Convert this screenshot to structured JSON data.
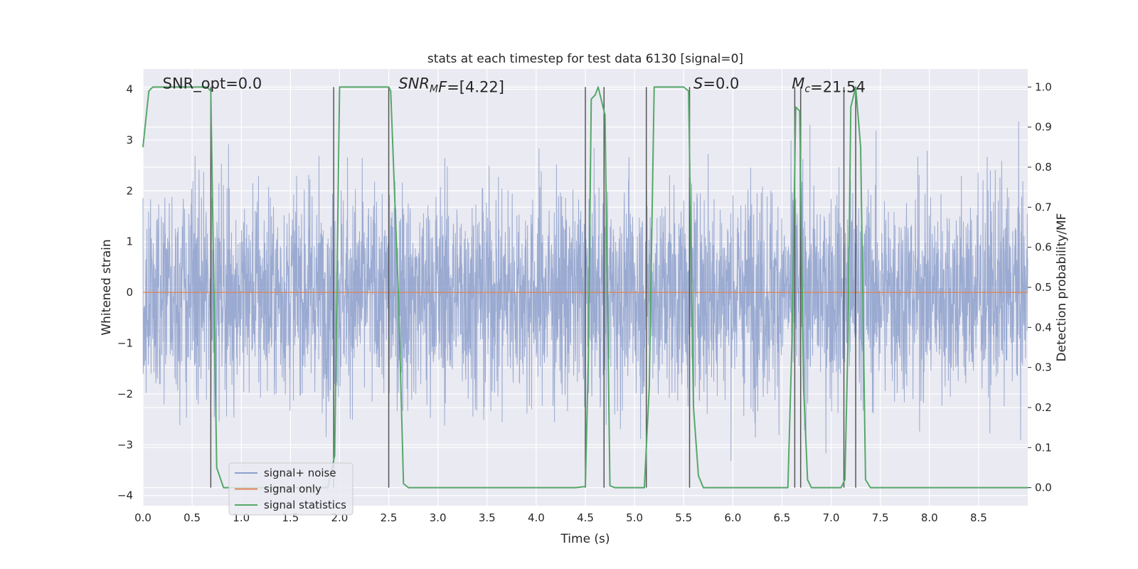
{
  "chart_data": {
    "type": "line",
    "title": "stats at each timestep for test data 6130 [signal=0]",
    "xlabel": "Time (s)",
    "ylabel": "Whitened strain",
    "y2label": "Detection probability/MF",
    "xlim": [
      0.0,
      9.0
    ],
    "ylim": [
      -4.2,
      4.4
    ],
    "y2lim": [
      -0.045,
      1.045
    ],
    "x_ticks": [
      "0.0",
      "0.5",
      "1.0",
      "1.5",
      "2.0",
      "2.5",
      "3.0",
      "3.5",
      "4.0",
      "4.5",
      "5.0",
      "5.5",
      "6.0",
      "6.5",
      "7.0",
      "7.5",
      "8.0",
      "8.5"
    ],
    "y_ticks": [
      "4",
      "3",
      "2",
      "1",
      "0",
      "−1",
      "−2",
      "−3",
      "−4"
    ],
    "y2_ticks": [
      "1.0",
      "0.9",
      "0.8",
      "0.7",
      "0.6",
      "0.5",
      "0.4",
      "0.3",
      "0.2",
      "0.1",
      "0.0"
    ],
    "grid": true,
    "legend_placement": "lower-left",
    "annotations": [
      {
        "prefix": "SNR_opt",
        "italic": "",
        "sub": "",
        "suffix": "=0.0",
        "x": 0.2
      },
      {
        "prefix": "",
        "italic": "SNR",
        "sub": "M",
        "suffix": "=[4.22]",
        "italic2": "F",
        "x": 2.6
      },
      {
        "prefix": "",
        "italic": "S",
        "sub": "",
        "suffix": "=0.0",
        "x": 5.6
      },
      {
        "prefix": "",
        "italic": "M",
        "sub": "c",
        "suffix": "=21.54",
        "x": 6.6
      }
    ],
    "series": [
      {
        "name": "signal+ noise",
        "color": "#8c9fcb",
        "description": "whitened noise, approx. |y| < 3.9, mostly within ±2.5",
        "noise_range": [
          -3.8,
          3.9
        ]
      },
      {
        "name": "signal only",
        "color": "#dd8452",
        "x": [
          0.0,
          9.0
        ],
        "y": [
          0.0,
          0.0
        ]
      },
      {
        "name": "signal statistics",
        "color": "#55a868",
        "axis": "right",
        "x": [
          0.0,
          0.06,
          0.1,
          0.2,
          0.3,
          0.4,
          0.5,
          0.6,
          0.65,
          0.69,
          0.75,
          0.82,
          0.9,
          1.0,
          1.1,
          1.2,
          1.3,
          1.4,
          1.5,
          1.6,
          1.7,
          1.8,
          1.88,
          1.95,
          2.0,
          2.1,
          2.2,
          2.3,
          2.4,
          2.5,
          2.52,
          2.6,
          2.65,
          2.7,
          2.8,
          3.0,
          3.5,
          4.0,
          4.4,
          4.5,
          4.53,
          4.56,
          4.6,
          4.63,
          4.7,
          4.75,
          4.8,
          4.9,
          5.0,
          5.05,
          5.1,
          5.15,
          5.2,
          5.3,
          5.4,
          5.5,
          5.55,
          5.6,
          5.65,
          5.7,
          5.75,
          5.8,
          5.9,
          6.0,
          6.1,
          6.2,
          6.3,
          6.4,
          6.5,
          6.56,
          6.6,
          6.64,
          6.68,
          6.72,
          6.76,
          6.8,
          6.9,
          7.0,
          7.1,
          7.14,
          7.17,
          7.2,
          7.25,
          7.3,
          7.35,
          7.4,
          7.5,
          7.8,
          8.0,
          8.5,
          9.0
        ],
        "y": [
          0.85,
          0.99,
          1.0,
          1.0,
          1.0,
          1.0,
          1.0,
          1.0,
          1.0,
          0.99,
          0.05,
          0.0,
          0.0,
          0.0,
          0.0,
          0.0,
          0.0,
          0.0,
          0.0,
          0.0,
          0.0,
          0.0,
          0.0,
          0.08,
          1.0,
          1.0,
          1.0,
          1.0,
          1.0,
          1.0,
          0.99,
          0.47,
          0.01,
          0.0,
          0.0,
          0.0,
          0.0,
          0.0,
          0.0,
          0.003,
          0.32,
          0.97,
          0.98,
          1.0,
          0.93,
          0.005,
          0.0,
          0.0,
          0.0,
          0.0,
          0.0,
          0.25,
          1.0,
          1.0,
          1.0,
          1.0,
          0.99,
          0.2,
          0.03,
          0.0,
          0.0,
          0.0,
          0.0,
          0.0,
          0.0,
          0.0,
          0.0,
          0.0,
          0.0,
          0.0,
          0.35,
          0.95,
          0.94,
          0.25,
          0.02,
          0.0,
          0.0,
          0.0,
          0.0,
          0.02,
          0.35,
          0.95,
          1.0,
          0.85,
          0.02,
          0.0,
          0.0,
          0.0,
          0.0,
          0.0,
          0.0
        ]
      }
    ],
    "vertical_markers_x": [
      0.69,
      1.94,
      2.5,
      4.5,
      4.69,
      5.12,
      5.56,
      6.63,
      6.69,
      7.13,
      7.25
    ]
  }
}
